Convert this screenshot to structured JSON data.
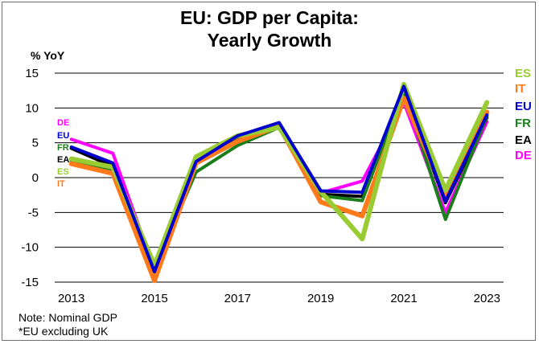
{
  "chart_data": {
    "type": "line",
    "title_lines": [
      "EU: GDP per Capita:",
      "Yearly Growth"
    ],
    "ylabel": "% YoY",
    "xlabel": "",
    "x": [
      2013,
      2014,
      2015,
      2016,
      2017,
      2018,
      2019,
      2020,
      2021,
      2022,
      2023
    ],
    "x_ticks": [
      "2013",
      "2015",
      "2017",
      "2019",
      "2021",
      "2023"
    ],
    "x_tick_values": [
      2013,
      2015,
      2017,
      2019,
      2021,
      2023
    ],
    "xlim": [
      2012.6,
      2023.4
    ],
    "ylim": [
      -15,
      15
    ],
    "y_ticks": [
      "15",
      "10",
      "5",
      "0",
      "-5",
      "-10",
      "-15"
    ],
    "y_tick_values": [
      15,
      10,
      5,
      0,
      -5,
      -10,
      -15
    ],
    "grid": "horizontal",
    "series": [
      {
        "name": "DE",
        "color": "#ff00ff",
        "width": 4,
        "values": [
          5.5,
          3.5,
          -13.2,
          2.5,
          5.8,
          7.6,
          -2.2,
          -0.5,
          10.8,
          -5.0,
          8.0
        ]
      },
      {
        "name": "EA",
        "color": "#000000",
        "width": 4,
        "values": [
          4.2,
          1.6,
          -13.4,
          2.2,
          5.8,
          7.6,
          -2.4,
          -2.7,
          12.6,
          -3.6,
          8.6
        ]
      },
      {
        "name": "FR",
        "color": "#1a7f1a",
        "width": 4,
        "values": [
          2.4,
          1.2,
          -13.0,
          0.8,
          4.6,
          7.2,
          -2.6,
          -3.3,
          12.5,
          -6.0,
          8.8
        ]
      },
      {
        "name": "IT",
        "color": "#ff7a1a",
        "width": 6,
        "values": [
          2.0,
          0.6,
          -14.8,
          2.1,
          5.2,
          7.4,
          -3.5,
          -5.5,
          11.4,
          -2.4,
          9.4
        ]
      },
      {
        "name": "ES",
        "color": "#99cc33",
        "width": 6,
        "values": [
          2.7,
          1.5,
          -12.6,
          3.0,
          6.0,
          7.2,
          -2.0,
          -8.8,
          13.4,
          -1.8,
          10.8
        ]
      },
      {
        "name": "EU",
        "color": "#0000cc",
        "width": 4,
        "values": [
          4.4,
          2.1,
          -13.5,
          2.3,
          6.0,
          7.9,
          -1.9,
          -2.1,
          13.1,
          -3.4,
          9.0
        ]
      }
    ],
    "legend_right": [
      {
        "label": "ES",
        "color": "#99cc33"
      },
      {
        "label": "IT",
        "color": "#ff7a1a"
      },
      {
        "label": "EU",
        "color": "#0000cc"
      },
      {
        "label": "FR",
        "color": "#1a7f1a"
      },
      {
        "label": "EA",
        "color": "#000000"
      },
      {
        "label": "DE",
        "color": "#ff00ff"
      }
    ],
    "legend_left": [
      {
        "label": "DE",
        "color": "#ff00ff"
      },
      {
        "label": "EU",
        "color": "#0000cc"
      },
      {
        "label": "FR",
        "color": "#1a7f1a"
      },
      {
        "label": "EA",
        "color": "#000000"
      },
      {
        "label": "ES",
        "color": "#99cc33"
      },
      {
        "label": "IT",
        "color": "#ff7a1a"
      }
    ],
    "notes": [
      "Note: Nominal GDP",
      "*EU excluding UK"
    ]
  }
}
